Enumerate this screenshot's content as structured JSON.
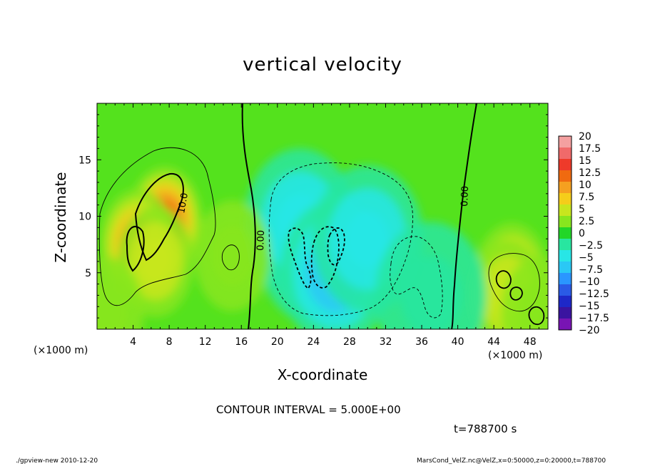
{
  "chart_data": {
    "type": "heatmap",
    "title": "vertical velocity",
    "xlabel": "X-coordinate",
    "ylabel": "Z-coordinate",
    "x_unit_left": "(×1000 m)",
    "x_unit_right": "(×1000 m)",
    "xlim": [
      0,
      50
    ],
    "ylim": [
      0,
      20
    ],
    "xticks": [
      4,
      8,
      12,
      16,
      20,
      24,
      28,
      32,
      36,
      40,
      44,
      48
    ],
    "yticks": [
      5,
      10,
      15
    ],
    "colorbar": {
      "levels": [
        "20",
        "17.5",
        "15",
        "12.5",
        "10",
        "7.5",
        "5",
        "2.5",
        "0",
        "−2.5",
        "−5",
        "−7.5",
        "−10",
        "−12.5",
        "−15",
        "−17.5",
        "−20"
      ],
      "colors": [
        "#f4a0a0",
        "#f06a6a",
        "#ee3a2a",
        "#f06a10",
        "#f5a020",
        "#f5cd1a",
        "#c8e61e",
        "#88e61e",
        "#22d628",
        "#28e6a0",
        "#28e6e6",
        "#2ac8f5",
        "#2a96ff",
        "#2a5ae6",
        "#1e28c8",
        "#3a14a0",
        "#7814b4"
      ]
    },
    "contour_labels": [
      "10.0",
      "0.00",
      "0.00"
    ],
    "series": [
      {
        "x": 7.5,
        "z": 9.5,
        "w": 13.0
      },
      {
        "x": 4.5,
        "z": 7.5,
        "w": 11.0
      },
      {
        "x": 6.5,
        "z": 6.0,
        "w": 6.0
      },
      {
        "x": 24.0,
        "z": 7.0,
        "w": -10.0
      },
      {
        "x": 22.5,
        "z": 9.5,
        "w": -6.0
      },
      {
        "x": 26.5,
        "z": 5.0,
        "w": -8.0
      },
      {
        "x": 30.0,
        "z": 8.0,
        "w": -4.0
      },
      {
        "x": 46.0,
        "z": 4.5,
        "w": 8.0
      },
      {
        "x": 45.5,
        "z": 3.0,
        "w": 4.0
      },
      {
        "x": 15.0,
        "z": 6.5,
        "w": 2.0
      },
      {
        "x": 1.0,
        "z": 1.5,
        "w": 1.5
      },
      {
        "x": 37.0,
        "z": 3.0,
        "w": -1.5
      },
      {
        "x": 49.0,
        "z": 1.5,
        "w": 2.0
      }
    ]
  },
  "contour_interval": "CONTOUR INTERVAL = 5.000E+00",
  "time_label": "t=788700 s",
  "footer_left": "./gpview-new  2010-12-20",
  "footer_right": "MarsCond_VelZ.nc@VelZ,x=0:50000,z=0:20000,t=788700"
}
